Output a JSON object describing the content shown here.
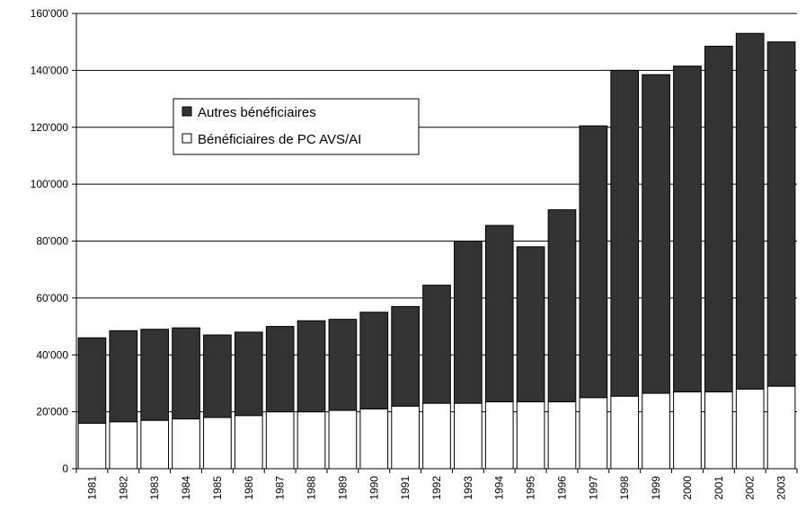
{
  "chart_data": {
    "type": "bar",
    "stacked": true,
    "title": "",
    "xlabel": "",
    "ylabel": "",
    "ylim": [
      0,
      160000
    ],
    "yticks": [
      0,
      20000,
      40000,
      60000,
      80000,
      100000,
      120000,
      140000,
      160000
    ],
    "ytick_labels": [
      "0",
      "20'000",
      "40'000",
      "60'000",
      "80'000",
      "100'000",
      "120'000",
      "140'000",
      "160'000"
    ],
    "grid": true,
    "legend_position": "upper-left",
    "categories": [
      "1981",
      "1982",
      "1983",
      "1984",
      "1985",
      "1986",
      "1987",
      "1988",
      "1989",
      "1990",
      "1991",
      "1992",
      "1993",
      "1994",
      "1995",
      "1996",
      "1997",
      "1998",
      "1999",
      "2000",
      "2001",
      "2002",
      "2003"
    ],
    "series": [
      {
        "name": "Bénéficiaires de PC AVS/AI",
        "color": "#ffffff",
        "values": [
          16000,
          16500,
          17000,
          17500,
          18000,
          18700,
          20000,
          20000,
          20500,
          21000,
          22000,
          23000,
          23000,
          23500,
          23500,
          23500,
          25000,
          25500,
          26500,
          27000,
          27000,
          28000,
          29000
        ]
      },
      {
        "name": "Autres bénéficiaires",
        "color": "#333333",
        "values": [
          30000,
          32000,
          32000,
          32000,
          29000,
          29300,
          30000,
          32000,
          32000,
          34000,
          35000,
          41500,
          57000,
          62000,
          54500,
          67500,
          95500,
          114500,
          112000,
          114500,
          121500,
          125000,
          121000
        ]
      }
    ],
    "legend": {
      "entries": [
        "Autres bénéficiaires",
        "Bénéficiaires de PC AVS/AI"
      ],
      "colors": [
        "#333333",
        "#ffffff"
      ]
    }
  }
}
